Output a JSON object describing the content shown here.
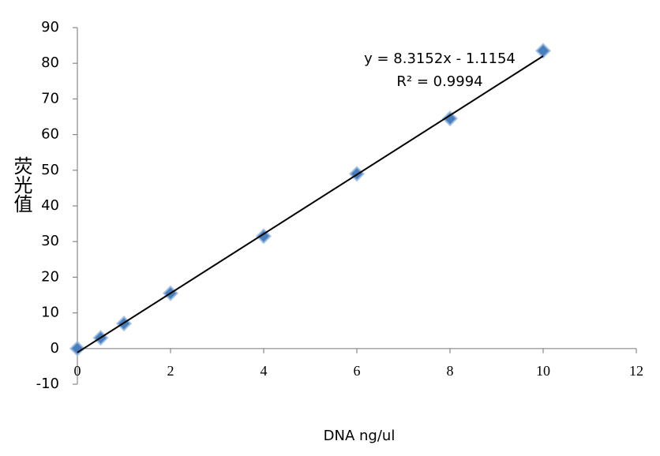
{
  "chart_data": {
    "type": "scatter",
    "xlabel": "DNA ng/ul",
    "ylabel": "荧光值",
    "x": [
      0,
      0.5,
      1,
      2,
      4,
      6,
      8,
      10
    ],
    "values": [
      0,
      3,
      7,
      15.5,
      31.5,
      49,
      64.5,
      83.5
    ],
    "color": "#4a7ebb",
    "xlim": [
      0,
      12
    ],
    "xticks": [
      0,
      2,
      4,
      6,
      8,
      10,
      12
    ],
    "ylim": [
      -10,
      90
    ],
    "yticks": [
      -10,
      0,
      10,
      20,
      30,
      40,
      50,
      60,
      70,
      80,
      90
    ],
    "trendline": {
      "slope": 8.3152,
      "intercept": -1.1154,
      "color": "#000000",
      "label": "y = 8.3152x - 1.1154",
      "r2_label": "R² = 0.9994"
    }
  }
}
